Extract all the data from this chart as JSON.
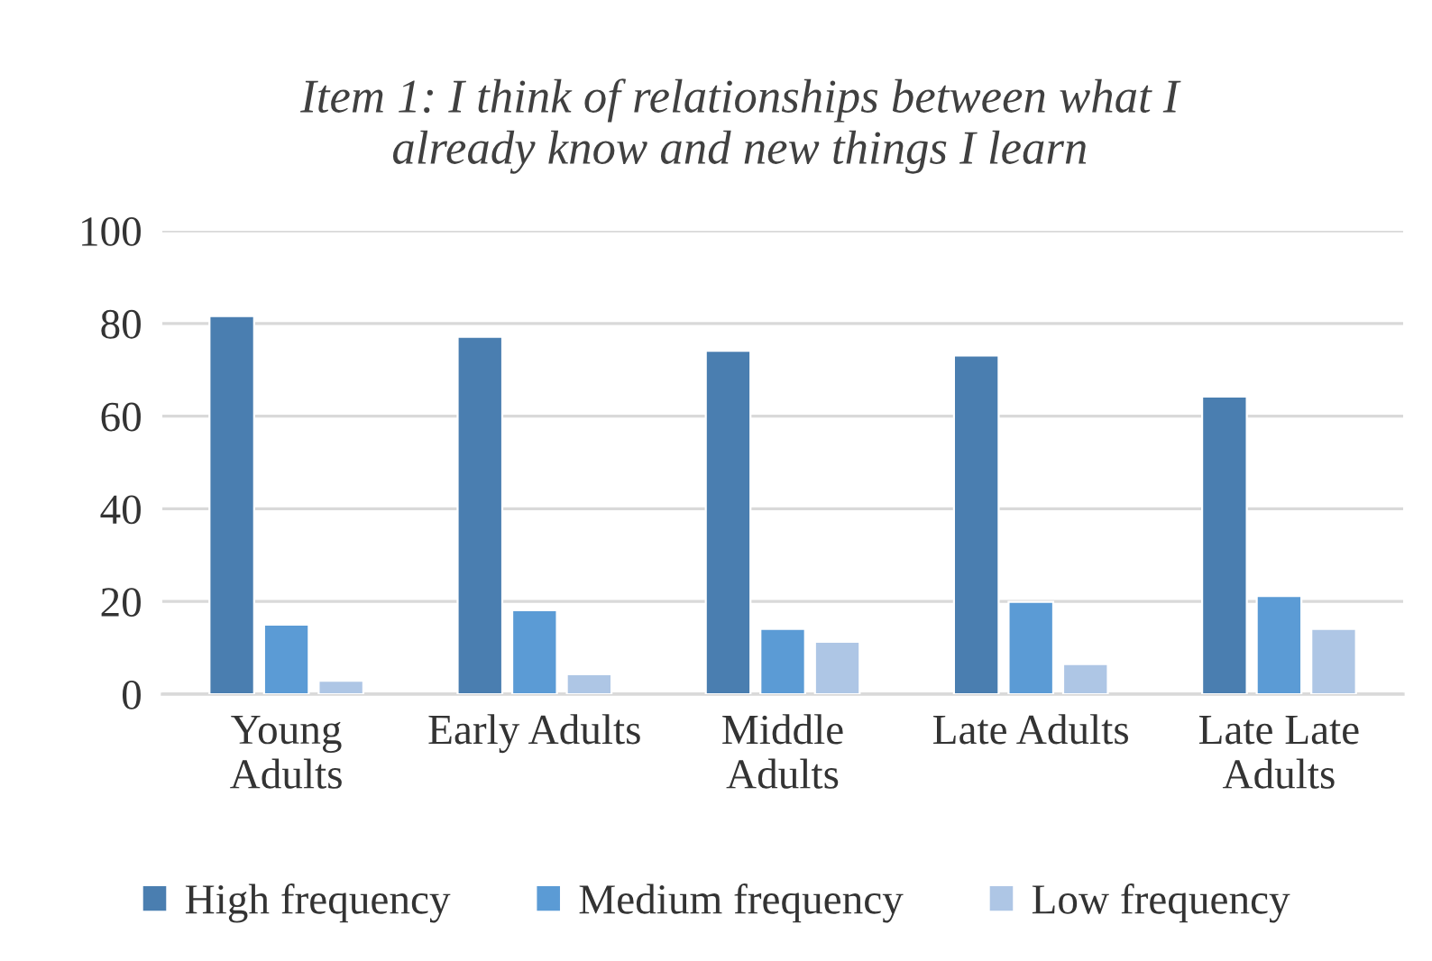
{
  "chart_data": {
    "type": "bar",
    "title": "Item 1: I think of relationships between what I\nalready know and new things I learn",
    "categories": [
      "Young\nAdults",
      "Early Adults",
      "Middle\nAdults",
      "Late Adults",
      "Late Late\nAdults"
    ],
    "series": [
      {
        "name": "High frequency",
        "color": "#4a7eb0",
        "values": [
          81.6,
          77.1,
          74.1,
          73.1,
          64.2
        ]
      },
      {
        "name": "Medium frequency",
        "color": "#5b9bd5",
        "values": [
          15.0,
          18.1,
          14.1,
          19.9,
          21.2
        ]
      },
      {
        "name": "Low frequency",
        "color": "#aec6e5",
        "values": [
          2.9,
          4.3,
          11.3,
          6.5,
          14.1
        ]
      }
    ],
    "ylim": [
      0,
      100
    ],
    "yticks": [
      0,
      20,
      40,
      60,
      80,
      100
    ],
    "grid": "y",
    "legend": "bottom"
  }
}
